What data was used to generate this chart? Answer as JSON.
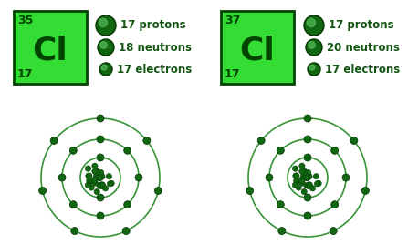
{
  "bg_color": "#ffffff",
  "green_fill": "#33dd33",
  "green_dark": "#004400",
  "green_border": "#228822",
  "green_text": "#115511",
  "gcf": "#116611",
  "gce": "#003300",
  "isotope1": {
    "mass": "35",
    "symbol": "Cl",
    "atomic": "17",
    "protons": "17 protons",
    "neutrons": "18 neutrons",
    "electrons": "17 electrons"
  },
  "isotope2": {
    "mass": "37",
    "symbol": "Cl",
    "atomic": "17",
    "protons": "17 protons",
    "neutrons": "20 neutrons",
    "electrons": "17 electrons"
  },
  "electron_counts": [
    2,
    8,
    7
  ],
  "figw": 4.47,
  "figh": 2.68
}
